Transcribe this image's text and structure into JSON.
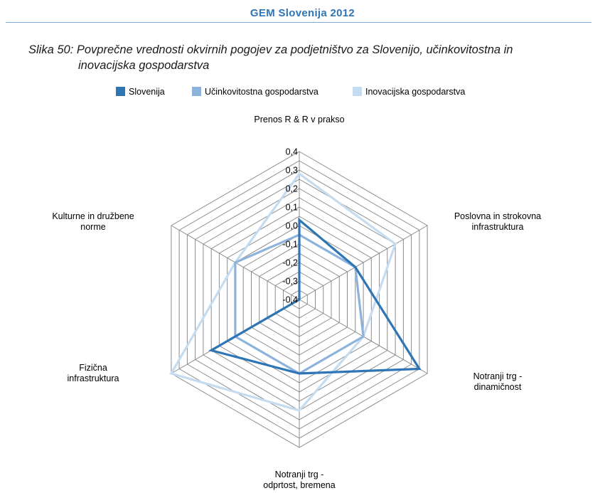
{
  "header": {
    "title": "GEM Slovenija 2012"
  },
  "caption": {
    "line1": "Slika 50: Povprečne vrednosti okvirnih pogojev za podjetništvo za Slovenijo, učinkovitostna in",
    "line2": "inovacijska gospodarstva"
  },
  "chart_data": {
    "type": "radar",
    "title": "",
    "axes": [
      "Prenos R & R v prakso",
      "Poslovna in strokovna infrastruktura",
      "Notranji trg - dinamičnost",
      "Notranji trg - odprtost, bremena",
      "Fizična infrastruktura",
      "Kulturne in družbene norme"
    ],
    "axis_label_lines": [
      [
        "Prenos R & R v prakso"
      ],
      [
        "Poslovna in strokovna",
        "infrastruktura"
      ],
      [
        "Notranji trg -",
        "dinamičnost"
      ],
      [
        "Notranji trg -",
        "odprtost, bremena"
      ],
      [
        "Fizična",
        "infrastruktura"
      ],
      [
        "Kulturne in družbene",
        "norme"
      ]
    ],
    "range": [
      -0.4,
      0.4
    ],
    "ticks": [
      "-0,4",
      "-0,3",
      "-0,2",
      "-0,1",
      "0,0",
      "0,1",
      "0,2",
      "0,3",
      "0,4"
    ],
    "tick_values": [
      -0.4,
      -0.3,
      -0.2,
      -0.1,
      0.0,
      0.1,
      0.2,
      0.3,
      0.4
    ],
    "grid_rings": [
      -0.4,
      -0.35,
      -0.3,
      -0.25,
      -0.2,
      -0.15,
      -0.1,
      -0.05,
      0.0,
      0.05,
      0.1,
      0.15,
      0.2,
      0.25,
      0.3,
      0.35,
      0.4
    ],
    "legend_position": "top",
    "series": [
      {
        "name": "Slovenija",
        "color": "#2e75b6",
        "values": [
          0.03,
          -0.05,
          0.35,
          0.0,
          0.15,
          -0.4
        ]
      },
      {
        "name": "Učinkovitostna gospodarstva",
        "color": "#8db3dc",
        "values": [
          -0.05,
          -0.05,
          0.0,
          0.0,
          0.0,
          0.0
        ]
      },
      {
        "name": "Inovacijska gospodarstva",
        "color": "#c5dbef",
        "values": [
          0.28,
          0.2,
          0.0,
          0.2,
          0.4,
          0.0
        ]
      }
    ]
  }
}
